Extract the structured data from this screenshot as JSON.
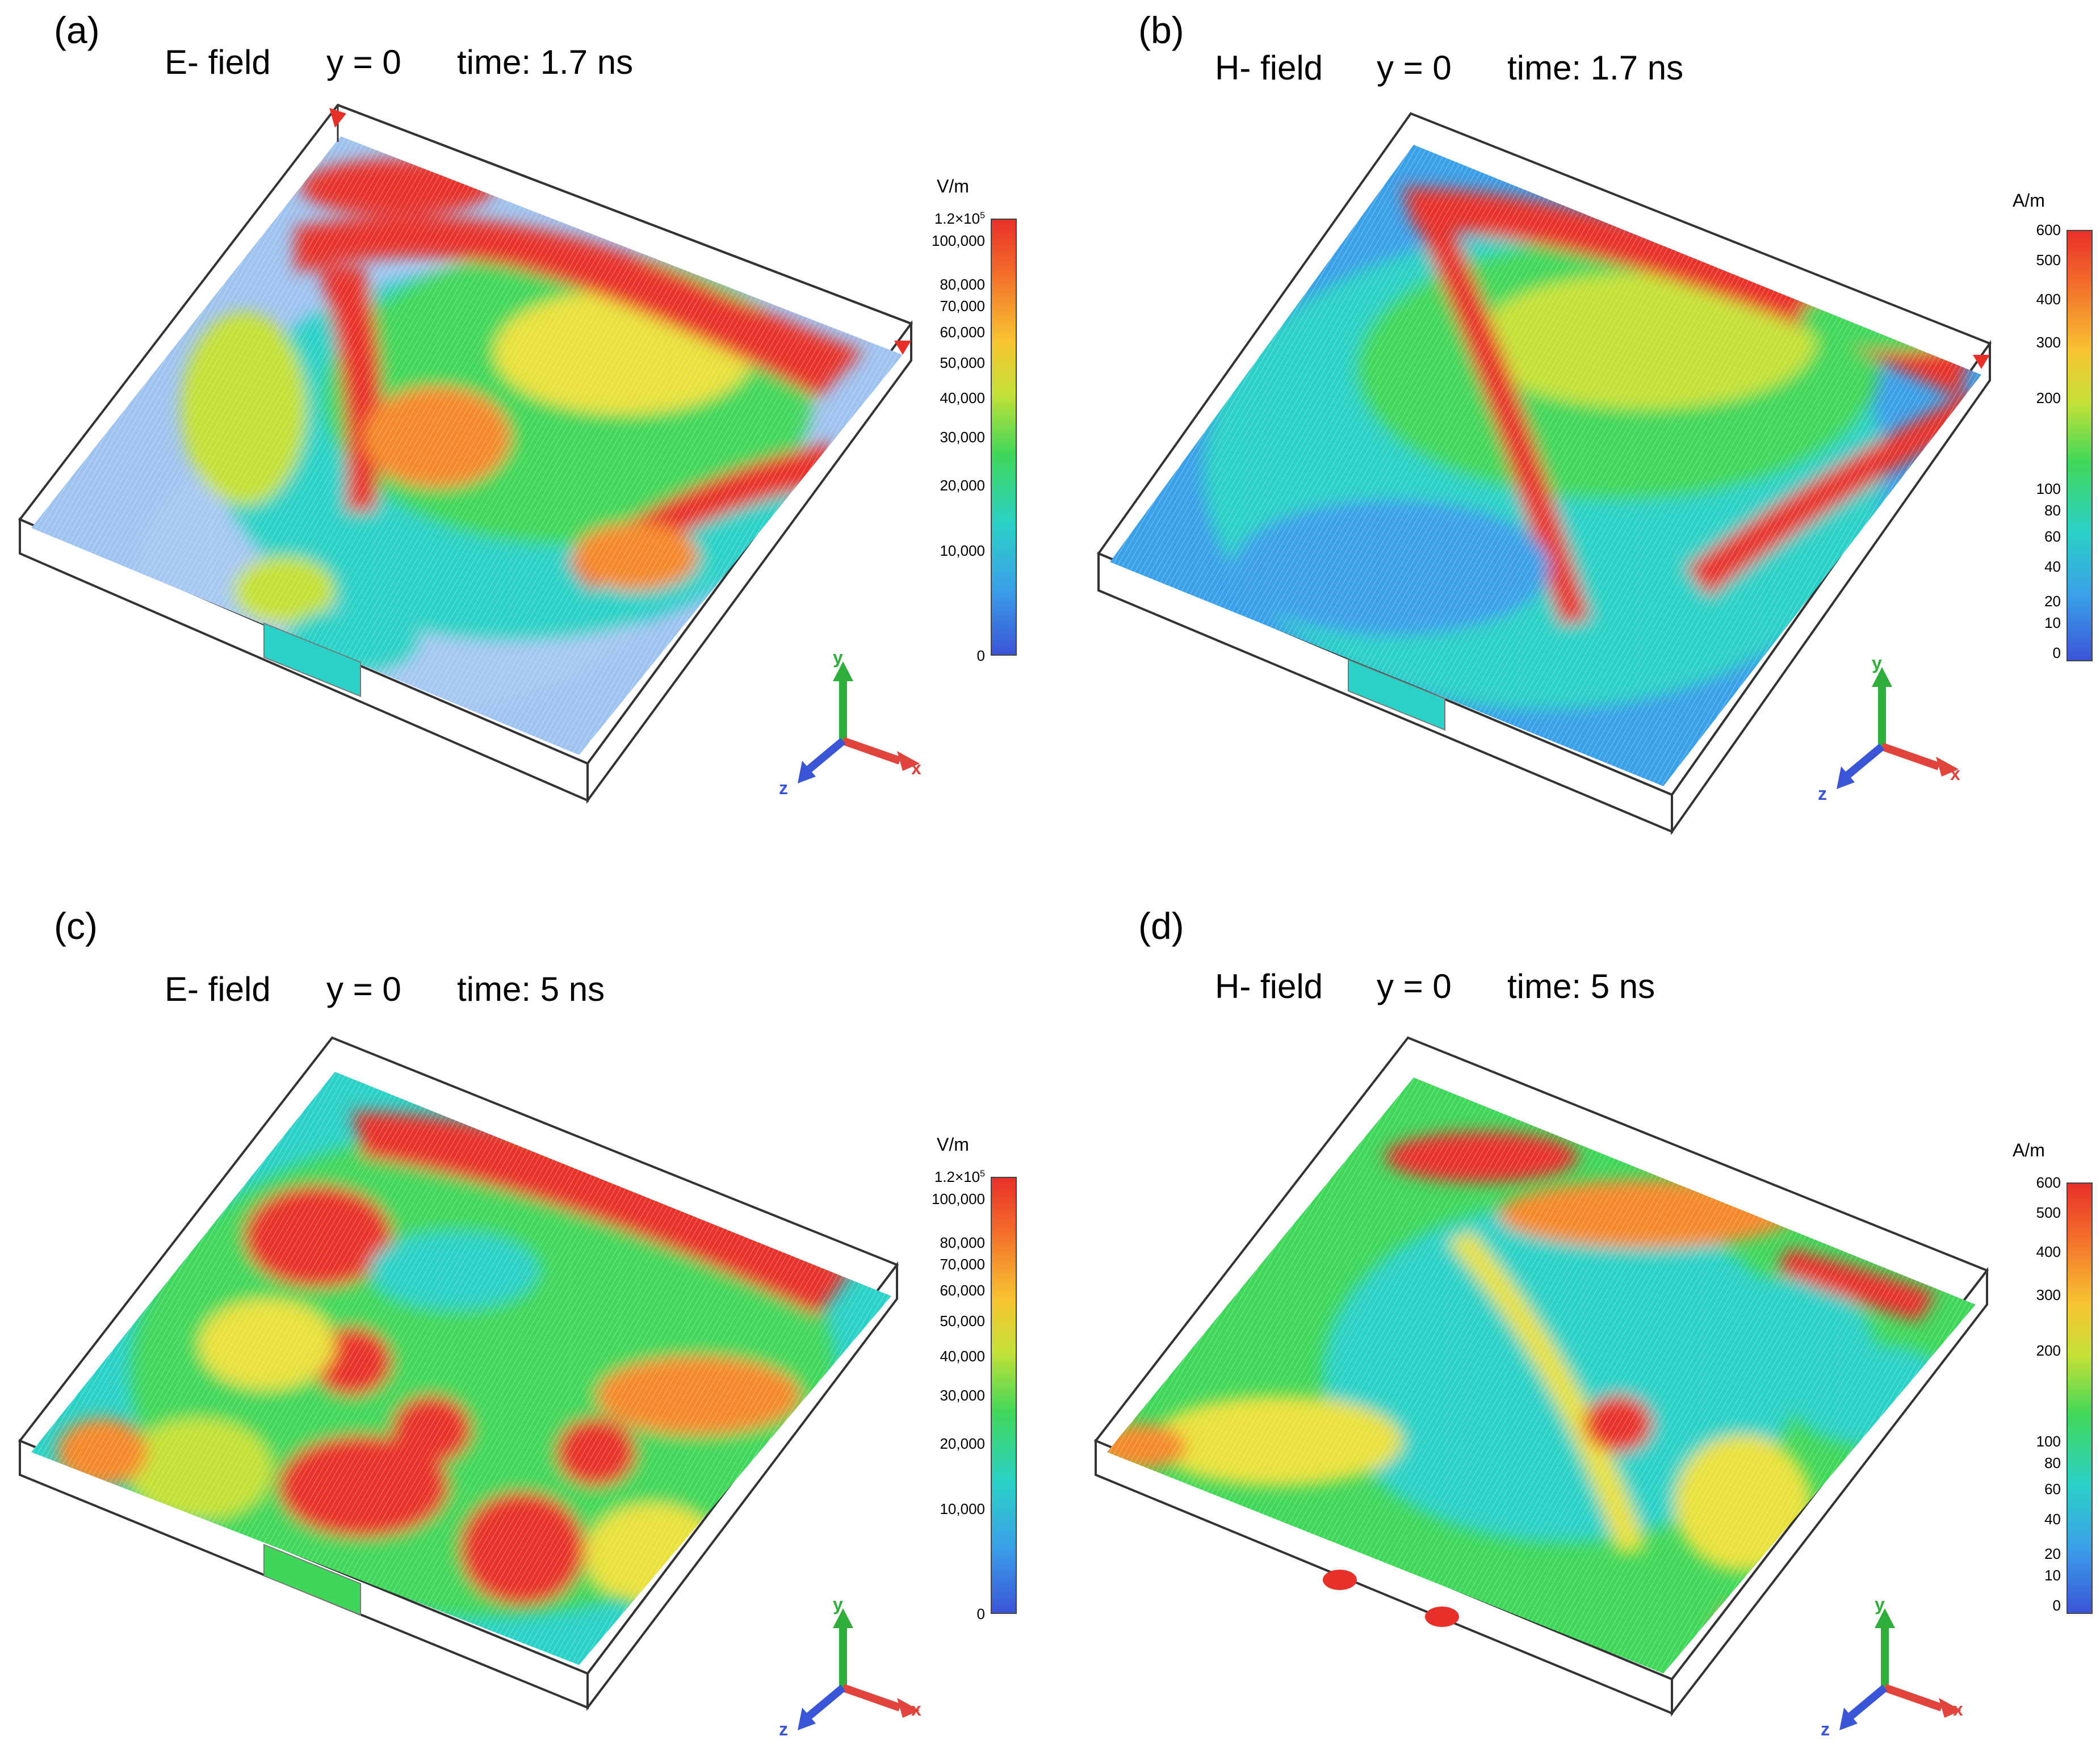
{
  "panels": [
    {
      "label": "(a)",
      "field": "E- field",
      "plane": "y = 0",
      "time": "time: 1.7 ns",
      "unit": "V/m",
      "ticks": [
        "1.2×10",
        "100,000",
        "80,000",
        "70,000",
        "60,000",
        "50,000",
        "40,000",
        "30,000",
        "20,000",
        "10,000",
        "0"
      ],
      "top_exponent": "5",
      "axes": {
        "x": "x",
        "y": "y",
        "z": "z"
      }
    },
    {
      "label": "(b)",
      "field": "H- field",
      "plane": "y = 0",
      "time": "time: 1.7 ns",
      "unit": "A/m",
      "ticks": [
        "600",
        "500",
        "400",
        "300",
        "200",
        "100",
        "80",
        "60",
        "40",
        "20",
        "10",
        "0"
      ],
      "top_exponent": "",
      "axes": {
        "x": "x",
        "y": "y",
        "z": "z"
      }
    },
    {
      "label": "(c)",
      "field": "E- field",
      "plane": "y = 0",
      "time": "time: 5 ns",
      "unit": "V/m",
      "ticks": [
        "1.2×10",
        "100,000",
        "80,000",
        "70,000",
        "60,000",
        "50,000",
        "40,000",
        "30,000",
        "20,000",
        "10,000",
        "0"
      ],
      "top_exponent": "5",
      "axes": {
        "x": "x",
        "y": "y",
        "z": "z"
      }
    },
    {
      "label": "(d)",
      "field": "H- field",
      "plane": "y = 0",
      "time": "time: 5 ns",
      "unit": "A/m",
      "ticks": [
        "600",
        "500",
        "400",
        "300",
        "200",
        "100",
        "80",
        "60",
        "40",
        "20",
        "10",
        "0"
      ],
      "top_exponent": "",
      "axes": {
        "x": "x",
        "y": "y",
        "z": "z"
      }
    }
  ],
  "colors": {
    "red": "#e8302a",
    "orange": "#f5892c",
    "yellow": "#e9e13a",
    "green": "#3fd75a",
    "cyan": "#2ad1c6",
    "blue": "#3b54d8",
    "axis_x": "#e0443c",
    "axis_y": "#2fae3c",
    "axis_z": "#3a55d6"
  }
}
